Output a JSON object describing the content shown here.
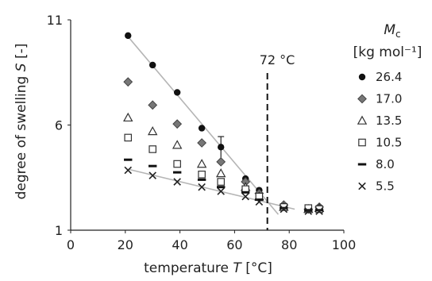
{
  "chart_data": {
    "type": "scatter",
    "xlabel": "temperature T [°C]",
    "ylabel": "degree of swelling S [-]",
    "xlim": [
      0,
      100
    ],
    "ylim": [
      1,
      11
    ],
    "xticks": [
      "0",
      "20",
      "40",
      "60",
      "80",
      "100"
    ],
    "yticks": [
      "1",
      "6",
      "11"
    ],
    "grid": false,
    "legend": {
      "position": "right",
      "title_symbol": "M",
      "title_subscript": "c",
      "title_unit": "[kg mol⁻¹]",
      "entries": [
        "26.4",
        "17.0",
        "13.5",
        "10.5",
        "8.0",
        "5.5"
      ]
    },
    "annotation": {
      "label": "72 °C",
      "x": 72
    },
    "series": [
      {
        "name": "26.4",
        "marker": "circle",
        "x": [
          21,
          30,
          39,
          48,
          55,
          64,
          69,
          78,
          87,
          91
        ],
        "y": [
          10.25,
          8.85,
          7.55,
          5.85,
          4.95,
          3.45,
          2.9,
          2.2,
          2.0,
          2.1
        ]
      },
      {
        "name": "17.0",
        "marker": "diamond",
        "x": [
          21,
          30,
          39,
          48,
          55,
          64,
          69,
          78,
          87,
          91
        ],
        "y": [
          8.05,
          6.95,
          6.05,
          5.15,
          4.25,
          3.3,
          2.75,
          2.2,
          2.0,
          2.1
        ]
      },
      {
        "name": "13.5",
        "marker": "triangle",
        "x": [
          21,
          30,
          39,
          48,
          55,
          64,
          69,
          78,
          87,
          91
        ],
        "y": [
          6.35,
          5.7,
          5.05,
          4.15,
          3.7,
          3.05,
          2.6,
          2.1,
          2.0,
          2.05
        ]
      },
      {
        "name": "10.5",
        "marker": "square",
        "x": [
          21,
          30,
          39,
          48,
          55,
          64,
          69,
          78,
          87,
          91
        ],
        "y": [
          5.4,
          4.85,
          4.15,
          3.65,
          3.3,
          2.95,
          2.6,
          2.1,
          2.05,
          2.0
        ]
      },
      {
        "name": "8.0",
        "marker": "dash",
        "x": [
          21,
          30,
          39,
          48,
          55,
          64,
          69,
          78,
          87,
          91
        ],
        "y": [
          4.35,
          4.05,
          3.75,
          3.4,
          3.05,
          2.8,
          2.45,
          2.05,
          1.95,
          1.95
        ]
      },
      {
        "name": "5.5",
        "marker": "cross",
        "x": [
          21,
          30,
          39,
          48,
          55,
          64,
          69,
          78,
          87,
          91
        ],
        "y": [
          3.85,
          3.6,
          3.3,
          3.05,
          2.85,
          2.6,
          2.35,
          2.0,
          1.9,
          1.9
        ]
      }
    ],
    "trend_lines": [
      {
        "x": [
          21,
          76
        ],
        "y": [
          10.2,
          1.75
        ]
      },
      {
        "x": [
          21,
          82
        ],
        "y": [
          3.9,
          2.0
        ]
      }
    ],
    "error_bars": [
      {
        "x": 55,
        "y": 4.95,
        "err": 0.5
      }
    ]
  }
}
